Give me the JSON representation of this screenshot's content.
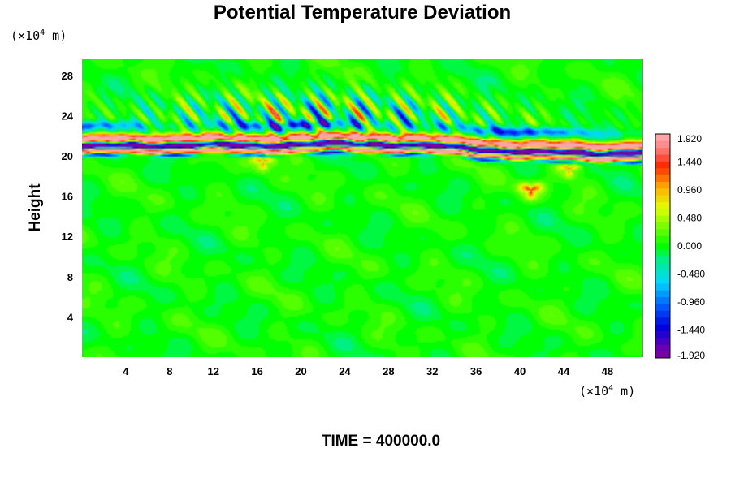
{
  "chart_data": {
    "type": "heatmap",
    "title": "Potential Temperature Deviation",
    "ylabel": "Height",
    "xlabel": "",
    "x_unit": {
      "prefix": "(×10",
      "exp": "4",
      "suffix": " m)"
    },
    "y_unit": {
      "prefix": "(×10",
      "exp": "4",
      "suffix": " m)"
    },
    "xlim": [
      0,
      51.2
    ],
    "ylim": [
      0,
      29.6
    ],
    "x_ticks": [
      "4",
      "8",
      "12",
      "16",
      "20",
      "24",
      "28",
      "32",
      "36",
      "40",
      "44",
      "48"
    ],
    "y_ticks": [
      "4",
      "8",
      "12",
      "16",
      "20",
      "24",
      "28"
    ],
    "x_tick_values": [
      4,
      8,
      12,
      16,
      20,
      24,
      28,
      32,
      36,
      40,
      44,
      48
    ],
    "y_tick_values": [
      4,
      8,
      12,
      16,
      20,
      24,
      28
    ],
    "colorbar": {
      "range": [
        -1.92,
        1.92
      ],
      "levels": 33,
      "labels": [
        "1.920",
        "1.440",
        "0.960",
        "0.480",
        "0.000",
        "-0.480",
        "-0.960",
        "-1.440",
        "-1.920"
      ],
      "label_values": [
        1.92,
        1.44,
        0.96,
        0.48,
        0.0,
        -0.48,
        -0.96,
        -1.44,
        -1.92
      ]
    },
    "field_features": [
      {
        "feature": "background",
        "value": 0.05
      },
      {
        "feature": "upper warm band",
        "y_center": 21.3,
        "half_width": 0.6,
        "value": 1.92
      },
      {
        "feature": "central cold band",
        "y_center": 20.7,
        "half_width": 0.35,
        "value": -1.92
      },
      {
        "feature": "lower warm band",
        "y_center": 20.1,
        "half_width": 0.4,
        "value": 1.92
      },
      {
        "feature": "upper cold fringe",
        "y_center": 22.7,
        "half_width": 0.4,
        "value": -0.9
      },
      {
        "feature": "lower cold fringe",
        "y_center": 19.7,
        "half_width": 0.25,
        "value": -1.0
      },
      {
        "feature": "upper wave packet",
        "y_center": 23.8,
        "half_width": 1.8,
        "value": 0.8
      },
      {
        "feature": "warm eddy",
        "x": 41,
        "y": 16.6,
        "value": 1.4
      },
      {
        "feature": "warm eddy",
        "x": 44.5,
        "y": 18.7,
        "value": 1.0
      },
      {
        "feature": "warm eddy",
        "x": 16.5,
        "y": 19.4,
        "value": 1.2
      }
    ]
  },
  "footer": {
    "time_label": "TIME = 400000.0"
  }
}
